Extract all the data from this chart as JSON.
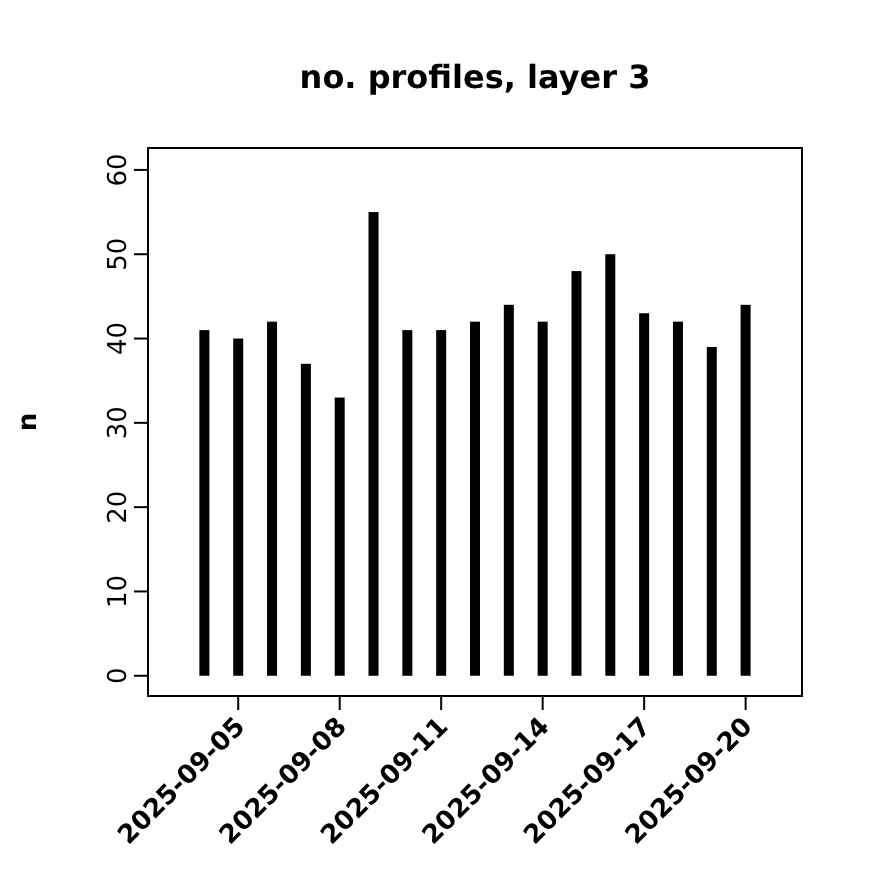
{
  "chart_data": {
    "type": "bar",
    "title": "no. profiles, layer 3",
    "ylabel": "n",
    "x": [
      "2025-09-04",
      "2025-09-05",
      "2025-09-06",
      "2025-09-07",
      "2025-09-08",
      "2025-09-09",
      "2025-09-10",
      "2025-09-11",
      "2025-09-12",
      "2025-09-13",
      "2025-09-14",
      "2025-09-15",
      "2025-09-16",
      "2025-09-17",
      "2025-09-18",
      "2025-09-19",
      "2025-09-20"
    ],
    "values": [
      41,
      40,
      42,
      37,
      33,
      55,
      41,
      41,
      42,
      44,
      42,
      48,
      50,
      43,
      42,
      39,
      44
    ],
    "color": "#000000",
    "xlim": [
      "2025-09-02T08:00",
      "2025-09-21T16:00"
    ],
    "xticks": [
      {
        "value": "2025-09-05",
        "label": "2025-09-05"
      },
      {
        "value": "2025-09-08",
        "label": "2025-09-08"
      },
      {
        "value": "2025-09-11",
        "label": "2025-09-11"
      },
      {
        "value": "2025-09-14",
        "label": "2025-09-14"
      },
      {
        "value": "2025-09-17",
        "label": "2025-09-17"
      },
      {
        "value": "2025-09-20",
        "label": "2025-09-20"
      }
    ],
    "ylim": [
      -2.4,
      62.6
    ],
    "yticks": [
      0,
      10,
      20,
      30,
      40,
      50,
      60
    ],
    "grid": false
  }
}
